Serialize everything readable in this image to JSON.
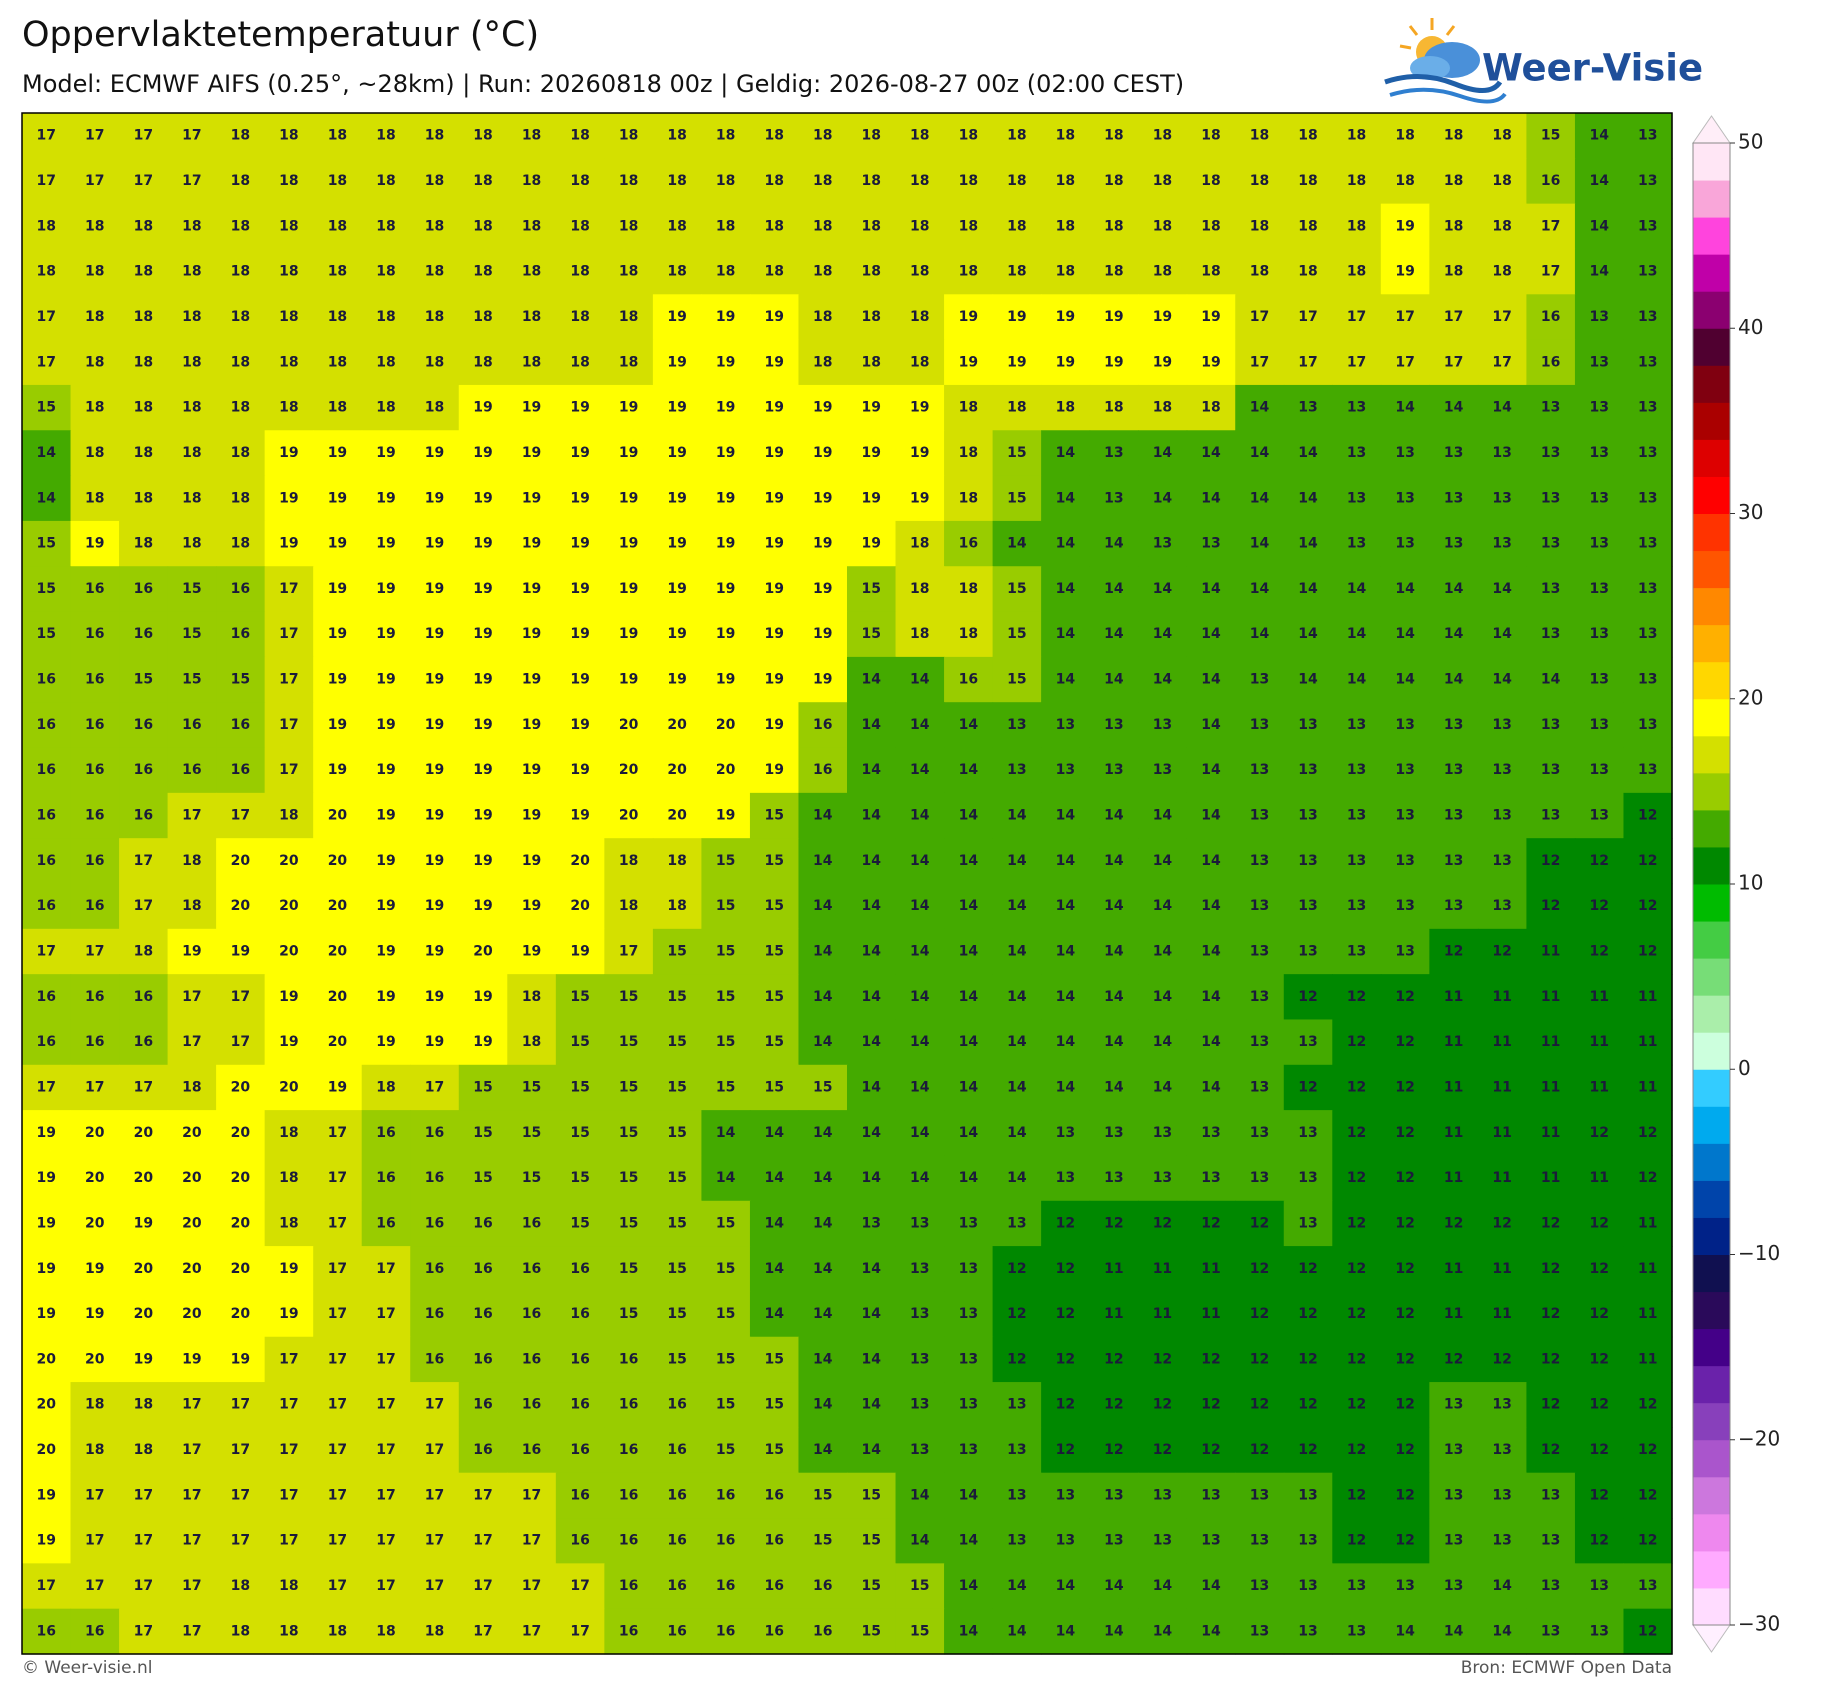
{
  "header": {
    "title": "Oppervlaktetemperatuur (°C)",
    "subtitle": "Model: ECMWF AIFS (0.25°, ~28km)  |  Run: 20260818 00z  |  Geldig: 2026-08-27 00z (02:00 CEST)",
    "logo": "Weer-Visie"
  },
  "map": {
    "grid": [
      [
        17,
        17,
        17,
        17,
        18,
        18,
        18,
        18,
        18,
        18,
        18,
        18,
        18,
        18,
        18,
        18,
        18,
        18,
        18,
        18,
        18,
        18,
        18,
        18,
        18,
        18,
        18,
        18,
        18,
        18,
        18,
        15,
        14,
        13
      ],
      [
        17,
        17,
        17,
        17,
        18,
        18,
        18,
        18,
        18,
        18,
        18,
        18,
        18,
        18,
        18,
        18,
        18,
        18,
        18,
        18,
        18,
        18,
        18,
        18,
        18,
        18,
        18,
        18,
        18,
        18,
        18,
        16,
        14,
        13
      ],
      [
        18,
        18,
        18,
        18,
        18,
        18,
        18,
        18,
        18,
        18,
        18,
        18,
        18,
        18,
        18,
        18,
        18,
        18,
        18,
        18,
        18,
        18,
        18,
        18,
        18,
        18,
        18,
        18,
        19,
        18,
        18,
        17,
        14,
        13
      ],
      [
        18,
        18,
        18,
        18,
        18,
        18,
        18,
        18,
        18,
        18,
        18,
        18,
        18,
        18,
        18,
        18,
        18,
        18,
        18,
        18,
        18,
        18,
        18,
        18,
        18,
        18,
        18,
        18,
        19,
        18,
        18,
        17,
        14,
        13
      ],
      [
        17,
        18,
        18,
        18,
        18,
        18,
        18,
        18,
        18,
        18,
        18,
        18,
        18,
        19,
        19,
        19,
        18,
        18,
        18,
        19,
        19,
        19,
        19,
        19,
        19,
        17,
        17,
        17,
        17,
        17,
        17,
        16,
        13,
        13
      ],
      [
        17,
        18,
        18,
        18,
        18,
        18,
        18,
        18,
        18,
        18,
        18,
        18,
        18,
        19,
        19,
        19,
        18,
        18,
        18,
        19,
        19,
        19,
        19,
        19,
        19,
        17,
        17,
        17,
        17,
        17,
        17,
        16,
        13,
        13
      ],
      [
        15,
        18,
        18,
        18,
        18,
        18,
        18,
        18,
        18,
        19,
        19,
        19,
        19,
        19,
        19,
        19,
        19,
        19,
        19,
        18,
        18,
        18,
        18,
        18,
        18,
        14,
        13,
        13,
        14,
        14,
        14,
        13,
        13,
        13
      ],
      [
        14,
        18,
        18,
        18,
        18,
        19,
        19,
        19,
        19,
        19,
        19,
        19,
        19,
        19,
        19,
        19,
        19,
        19,
        19,
        18,
        15,
        14,
        13,
        14,
        14,
        14,
        14,
        13,
        13,
        13,
        13,
        13,
        13,
        13
      ],
      [
        14,
        18,
        18,
        18,
        18,
        19,
        19,
        19,
        19,
        19,
        19,
        19,
        19,
        19,
        19,
        19,
        19,
        19,
        19,
        18,
        15,
        14,
        13,
        14,
        14,
        14,
        14,
        13,
        13,
        13,
        13,
        13,
        13,
        13
      ],
      [
        15,
        19,
        18,
        18,
        18,
        19,
        19,
        19,
        19,
        19,
        19,
        19,
        19,
        19,
        19,
        19,
        19,
        19,
        18,
        16,
        14,
        14,
        14,
        13,
        13,
        14,
        14,
        13,
        13,
        13,
        13,
        13,
        13,
        13
      ],
      [
        15,
        16,
        16,
        15,
        16,
        17,
        19,
        19,
        19,
        19,
        19,
        19,
        19,
        19,
        19,
        19,
        19,
        15,
        18,
        18,
        15,
        14,
        14,
        14,
        14,
        14,
        14,
        14,
        14,
        14,
        14,
        13,
        13,
        13
      ],
      [
        15,
        16,
        16,
        15,
        16,
        17,
        19,
        19,
        19,
        19,
        19,
        19,
        19,
        19,
        19,
        19,
        19,
        15,
        18,
        18,
        15,
        14,
        14,
        14,
        14,
        14,
        14,
        14,
        14,
        14,
        14,
        13,
        13,
        13
      ],
      [
        16,
        16,
        15,
        15,
        15,
        17,
        19,
        19,
        19,
        19,
        19,
        19,
        19,
        19,
        19,
        19,
        19,
        14,
        14,
        16,
        15,
        14,
        14,
        14,
        14,
        13,
        14,
        14,
        14,
        14,
        14,
        14,
        13,
        13
      ],
      [
        16,
        16,
        16,
        16,
        16,
        17,
        19,
        19,
        19,
        19,
        19,
        19,
        20,
        20,
        20,
        19,
        16,
        14,
        14,
        14,
        13,
        13,
        13,
        13,
        14,
        13,
        13,
        13,
        13,
        13,
        13,
        13,
        13,
        13
      ],
      [
        16,
        16,
        16,
        16,
        16,
        17,
        19,
        19,
        19,
        19,
        19,
        19,
        20,
        20,
        20,
        19,
        16,
        14,
        14,
        14,
        13,
        13,
        13,
        13,
        14,
        13,
        13,
        13,
        13,
        13,
        13,
        13,
        13,
        13
      ],
      [
        16,
        16,
        16,
        17,
        17,
        18,
        20,
        19,
        19,
        19,
        19,
        19,
        20,
        20,
        19,
        15,
        14,
        14,
        14,
        14,
        14,
        14,
        14,
        14,
        14,
        13,
        13,
        13,
        13,
        13,
        13,
        13,
        13,
        12
      ],
      [
        16,
        16,
        17,
        18,
        20,
        20,
        20,
        19,
        19,
        19,
        19,
        20,
        18,
        18,
        15,
        15,
        14,
        14,
        14,
        14,
        14,
        14,
        14,
        14,
        14,
        13,
        13,
        13,
        13,
        13,
        13,
        12,
        12,
        12
      ],
      [
        16,
        16,
        17,
        18,
        20,
        20,
        20,
        19,
        19,
        19,
        19,
        20,
        18,
        18,
        15,
        15,
        14,
        14,
        14,
        14,
        14,
        14,
        14,
        14,
        14,
        13,
        13,
        13,
        13,
        13,
        13,
        12,
        12,
        12
      ],
      [
        17,
        17,
        18,
        19,
        19,
        20,
        20,
        19,
        19,
        20,
        19,
        19,
        17,
        15,
        15,
        15,
        14,
        14,
        14,
        14,
        14,
        14,
        14,
        14,
        14,
        13,
        13,
        13,
        13,
        12,
        12,
        11,
        12,
        12
      ],
      [
        16,
        16,
        16,
        17,
        17,
        19,
        20,
        19,
        19,
        19,
        18,
        15,
        15,
        15,
        15,
        15,
        14,
        14,
        14,
        14,
        14,
        14,
        14,
        14,
        14,
        13,
        12,
        12,
        12,
        11,
        11,
        11,
        11,
        11
      ],
      [
        16,
        16,
        16,
        17,
        17,
        19,
        20,
        19,
        19,
        19,
        18,
        15,
        15,
        15,
        15,
        15,
        14,
        14,
        14,
        14,
        14,
        14,
        14,
        14,
        14,
        13,
        13,
        12,
        12,
        11,
        11,
        11,
        11,
        11
      ],
      [
        17,
        17,
        17,
        18,
        20,
        20,
        19,
        18,
        17,
        15,
        15,
        15,
        15,
        15,
        15,
        15,
        15,
        14,
        14,
        14,
        14,
        14,
        14,
        14,
        14,
        13,
        12,
        12,
        12,
        11,
        11,
        11,
        11,
        11
      ],
      [
        19,
        20,
        20,
        20,
        20,
        18,
        17,
        16,
        16,
        15,
        15,
        15,
        15,
        15,
        14,
        14,
        14,
        14,
        14,
        14,
        14,
        13,
        13,
        13,
        13,
        13,
        13,
        12,
        12,
        11,
        11,
        11,
        12,
        12
      ],
      [
        19,
        20,
        20,
        20,
        20,
        18,
        17,
        16,
        16,
        15,
        15,
        15,
        15,
        15,
        14,
        14,
        14,
        14,
        14,
        14,
        14,
        13,
        13,
        13,
        13,
        13,
        13,
        12,
        12,
        11,
        11,
        11,
        11,
        12
      ],
      [
        19,
        20,
        19,
        20,
        20,
        18,
        17,
        16,
        16,
        16,
        16,
        15,
        15,
        15,
        15,
        14,
        14,
        13,
        13,
        13,
        13,
        12,
        12,
        12,
        12,
        12,
        13,
        12,
        12,
        12,
        12,
        12,
        12,
        11
      ],
      [
        19,
        19,
        20,
        20,
        20,
        19,
        17,
        17,
        16,
        16,
        16,
        16,
        15,
        15,
        15,
        14,
        14,
        14,
        13,
        13,
        12,
        12,
        11,
        11,
        11,
        12,
        12,
        12,
        12,
        11,
        11,
        12,
        12,
        11
      ],
      [
        19,
        19,
        20,
        20,
        20,
        19,
        17,
        17,
        16,
        16,
        16,
        16,
        15,
        15,
        15,
        14,
        14,
        14,
        13,
        13,
        12,
        12,
        11,
        11,
        11,
        12,
        12,
        12,
        12,
        11,
        11,
        12,
        12,
        11
      ],
      [
        20,
        20,
        19,
        19,
        19,
        17,
        17,
        17,
        16,
        16,
        16,
        16,
        16,
        15,
        15,
        15,
        14,
        14,
        13,
        13,
        12,
        12,
        12,
        12,
        12,
        12,
        12,
        12,
        12,
        12,
        12,
        12,
        12,
        11
      ],
      [
        20,
        18,
        18,
        17,
        17,
        17,
        17,
        17,
        17,
        16,
        16,
        16,
        16,
        16,
        15,
        15,
        14,
        14,
        13,
        13,
        13,
        12,
        12,
        12,
        12,
        12,
        12,
        12,
        12,
        13,
        13,
        12,
        12,
        12
      ],
      [
        20,
        18,
        18,
        17,
        17,
        17,
        17,
        17,
        17,
        16,
        16,
        16,
        16,
        16,
        15,
        15,
        14,
        14,
        13,
        13,
        13,
        12,
        12,
        12,
        12,
        12,
        12,
        12,
        12,
        13,
        13,
        12,
        12,
        12
      ],
      [
        19,
        17,
        17,
        17,
        17,
        17,
        17,
        17,
        17,
        17,
        17,
        16,
        16,
        16,
        16,
        16,
        15,
        15,
        14,
        14,
        13,
        13,
        13,
        13,
        13,
        13,
        13,
        12,
        12,
        13,
        13,
        13,
        12,
        12
      ],
      [
        19,
        17,
        17,
        17,
        17,
        17,
        17,
        17,
        17,
        17,
        17,
        16,
        16,
        16,
        16,
        16,
        15,
        15,
        14,
        14,
        13,
        13,
        13,
        13,
        13,
        13,
        13,
        12,
        12,
        13,
        13,
        13,
        12,
        12
      ],
      [
        17,
        17,
        17,
        17,
        18,
        18,
        17,
        17,
        17,
        17,
        17,
        17,
        16,
        16,
        16,
        16,
        16,
        15,
        15,
        14,
        14,
        14,
        14,
        14,
        14,
        13,
        13,
        13,
        13,
        13,
        14,
        13,
        13,
        13
      ],
      [
        16,
        16,
        17,
        17,
        18,
        18,
        18,
        18,
        18,
        17,
        17,
        17,
        16,
        16,
        16,
        16,
        16,
        15,
        15,
        14,
        14,
        14,
        14,
        14,
        14,
        13,
        13,
        13,
        14,
        14,
        14,
        13,
        13,
        12
      ]
    ]
  },
  "colorbar": {
    "lim": [
      -30,
      50
    ],
    "colors": [
      "#ffdcff",
      "#ffaaff",
      "#ee88ee",
      "#cc77dd",
      "#aa55cc",
      "#8840bb",
      "#6a22aa",
      "#440088",
      "#2a0a5a",
      "#101050",
      "#002288",
      "#0044aa",
      "#0077cc",
      "#00aaee",
      "#33ccff",
      "#ccffdd",
      "#aaeeaa",
      "#77dd77",
      "#44cc44",
      "#00bb00",
      "#008800",
      "#44aa00",
      "#99cc00",
      "#d4e000",
      "#ffff00",
      "#ffd700",
      "#ffb000",
      "#ff8800",
      "#ff5500",
      "#ff3300",
      "#ff0000",
      "#dd0000",
      "#aa0000",
      "#800010",
      "#500030",
      "#8b0070",
      "#c000a8",
      "#ff44dd",
      "#f9a6d9",
      "#ffe6f5"
    ],
    "ticks": [
      50,
      40,
      30,
      20,
      10,
      0,
      {
        "value": -10,
        "label": "−10"
      },
      {
        "value": -20,
        "label": "−20"
      },
      {
        "value": -30,
        "label": "−30"
      }
    ]
  },
  "footer": {
    "left": "© Weer-visie.nl",
    "right": "Bron: ECMWF Open Data"
  }
}
